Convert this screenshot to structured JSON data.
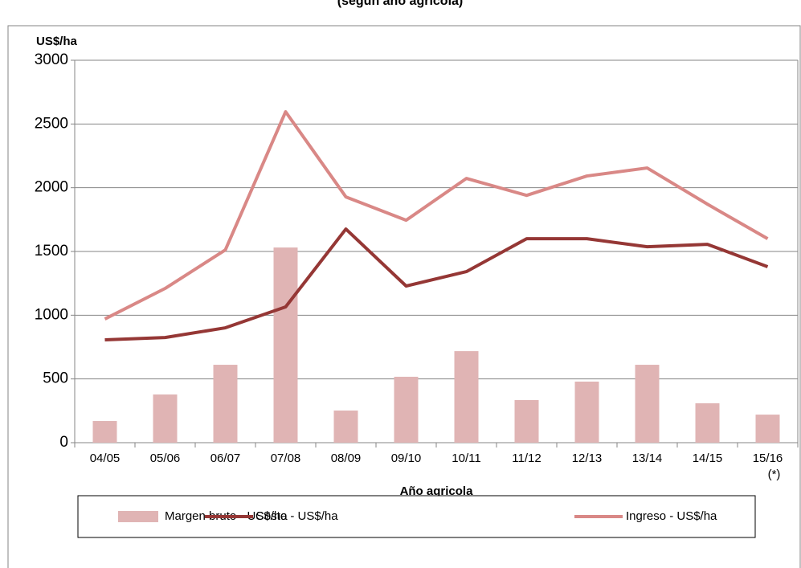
{
  "chart_data": {
    "type": "bar-line",
    "title": "(según año agrícola)",
    "y_label": "US$/ha",
    "x_label": "Año agricola",
    "categories": [
      "04/05",
      "05/06",
      "06/07",
      "07/08",
      "08/09",
      "09/10",
      "10/11",
      "11/12",
      "12/13",
      "13/14",
      "14/15",
      "15/16 (*)"
    ],
    "series": [
      {
        "name": "Margen bruto - US$/ha",
        "type": "bar",
        "color": "#e0b4b4",
        "values": [
          170,
          378,
          611,
          1531,
          252,
          517,
          718,
          334,
          479,
          611,
          309,
          220
        ]
      },
      {
        "name": "Costo - US$/ha",
        "type": "line",
        "color": "#953735",
        "values": [
          807,
          825,
          901,
          1065,
          1676,
          1229,
          1342,
          1600,
          1600,
          1537,
          1556,
          1380
        ]
      },
      {
        "name": "Ingreso - US$/ha",
        "type": "line",
        "color": "#d98886",
        "values": [
          970,
          1210,
          1512,
          2596,
          1928,
          1745,
          2073,
          1940,
          2092,
          2155,
          1871,
          1600
        ]
      }
    ],
    "ylim": [
      0,
      3000
    ],
    "yticks": [
      0,
      500,
      1000,
      1500,
      2000,
      2500,
      3000
    ],
    "grid": true,
    "legend": "bottom"
  }
}
